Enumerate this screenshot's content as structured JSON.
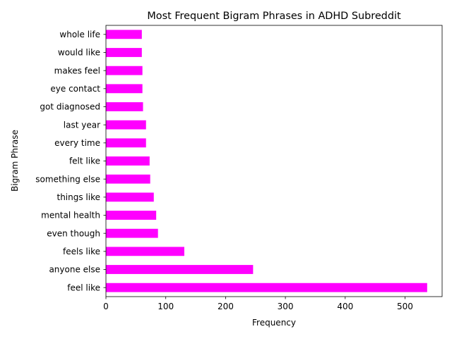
{
  "chart_data": {
    "type": "bar",
    "orientation": "horizontal",
    "title": "Most Frequent Bigram Phrases in ADHD Subreddit",
    "xlabel": "Frequency",
    "ylabel": "Bigram Phrase",
    "categories": [
      "feel like",
      "anyone else",
      "feels like",
      "even though",
      "mental health",
      "things like",
      "something else",
      "felt like",
      "every time",
      "last year",
      "got diagnosed",
      "eye contact",
      "makes feel",
      "would like",
      "whole life"
    ],
    "values": [
      537,
      246,
      131,
      87,
      84,
      80,
      74,
      73,
      67,
      67,
      62,
      61,
      61,
      60,
      60
    ],
    "xlim": [
      0,
      562
    ],
    "xticks": [
      0,
      100,
      200,
      300,
      400,
      500
    ],
    "grid": false,
    "legend": "none",
    "bar_color": "#ff00ff"
  }
}
